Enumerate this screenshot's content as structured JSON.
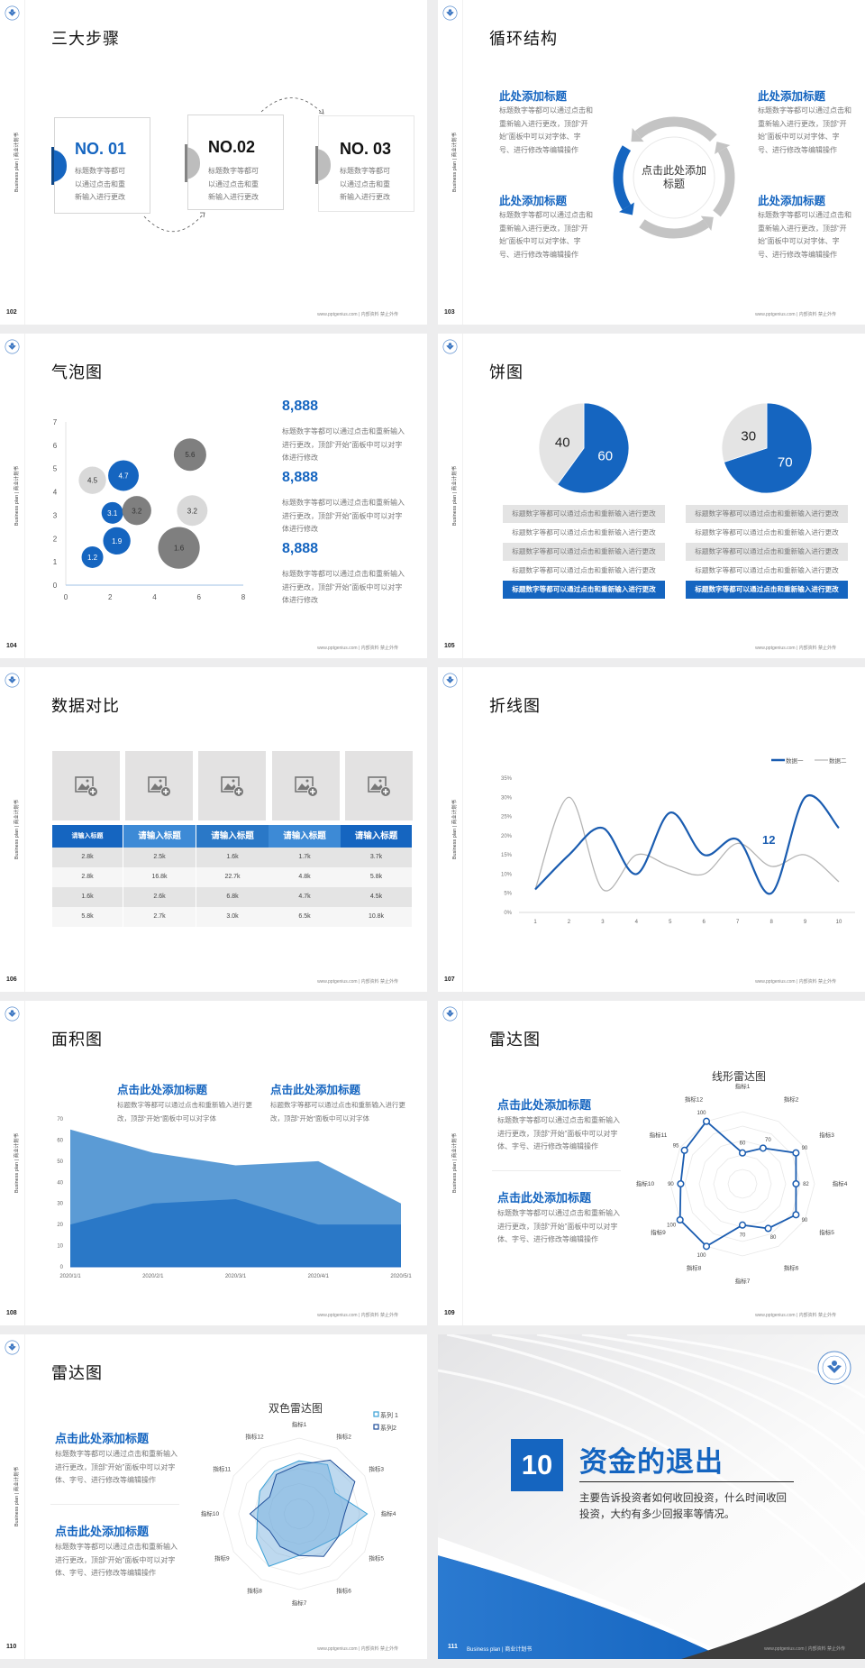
{
  "chrome": {
    "side_text": "Business plan | 商业计划书",
    "footer": "www.pptgenius.com | 内部资料 禁止外传",
    "logo": "university-seal-logo"
  },
  "colors": {
    "accent": "#1565c0",
    "light_gray": "#d9d9d9",
    "dark_gray": "#7f7f7f",
    "background": "#ededee"
  },
  "slide102": {
    "page": "102",
    "title": "三大步骤",
    "steps": [
      {
        "label": "NO. 01",
        "text": "标题数字等都可以通过点击和重新输入进行更改"
      },
      {
        "label": "NO.02",
        "text": "标题数字等都可以通过点击和重新输入进行更改"
      },
      {
        "label": "NO. 03",
        "text": "标题数字等都可以通过点击和重新输入进行更改"
      }
    ]
  },
  "slide103": {
    "page": "103",
    "title": "循环结构",
    "center": "点击此处添加标题",
    "blocks": [
      {
        "heading": "此处添加标题",
        "text": "标题数字等都可以通过点击和重新输入进行更改，顶部“开始”面板中可以对字体、字号、进行修改等编辑操作"
      },
      {
        "heading": "此处添加标题",
        "text": "标题数字等都可以通过点击和重新输入进行更改，顶部“开始”面板中可以对字体、字号、进行修改等编辑操作"
      },
      {
        "heading": "此处添加标题",
        "text": "标题数字等都可以通过点击和重新输入进行更改，顶部“开始”面板中可以对字体、字号、进行修改等编辑操作"
      },
      {
        "heading": "此处添加标题",
        "text": "标题数字等都可以通过点击和重新输入进行更改，顶部“开始”面板中可以对字体、字号、进行修改等编辑操作"
      }
    ]
  },
  "slide104": {
    "page": "104",
    "title": "气泡图",
    "stats": [
      {
        "value": "8,888",
        "text": "标题数字等都可以通过点击和重新输入进行更改，顶部“开始”面板中可以对字体进行修改"
      },
      {
        "value": "8,888",
        "text": "标题数字等都可以通过点击和重新输入进行更改，顶部“开始”面板中可以对字体进行修改"
      },
      {
        "value": "8,888",
        "text": "标题数字等都可以通过点击和重新输入进行更改，顶部“开始”面板中可以对字体进行修改"
      }
    ]
  },
  "slide105": {
    "page": "105",
    "title": "饼图",
    "rows_left": [
      "标题数字等都可以通过点击和重新输入进行更改",
      "标题数字等都可以通过点击和重新输入进行更改",
      "标题数字等都可以通过点击和重新输入进行更改",
      "标题数字等都可以通过点击和重新输入进行更改",
      "标题数字等都可以通过点击和重新输入进行更改"
    ],
    "rows_right": [
      "标题数字等都可以通过点击和重新输入进行更改",
      "标题数字等都可以通过点击和重新输入进行更改",
      "标题数字等都可以通过点击和重新输入进行更改",
      "标题数字等都可以通过点击和重新输入进行更改",
      "标题数字等都可以通过点击和重新输入进行更改"
    ]
  },
  "slide106": {
    "page": "106",
    "title": "数据对比",
    "image_icon": "add-image-icon",
    "headers": [
      "请输入标题",
      "请输入标题",
      "请输入标题",
      "请输入标题",
      "请输入标题"
    ],
    "rows": [
      [
        "2.8k",
        "2.5k",
        "1.6k",
        "1.7k",
        "3.7k"
      ],
      [
        "2.8k",
        "16.8k",
        "22.7k",
        "4.8k",
        "5.8k"
      ],
      [
        "1.6k",
        "2.6k",
        "6.8k",
        "4.7k",
        "4.5k"
      ],
      [
        "5.8k",
        "2.7k",
        "3.0k",
        "6.5k",
        "10.8k"
      ]
    ]
  },
  "slide107": {
    "page": "107",
    "title": "折线图",
    "annotation": "12"
  },
  "slide108": {
    "page": "108",
    "title": "面积图",
    "blocks": [
      {
        "heading": "点击此处添加标题",
        "text": "标题数字等都可以通过点击和重新输入进行更改，顶部“开始”面板中可以对字体"
      },
      {
        "heading": "点击此处添加标题",
        "text": "标题数字等都可以通过点击和重新输入进行更改，顶部“开始”面板中可以对字体"
      }
    ]
  },
  "slide109": {
    "page": "109",
    "title": "雷达图",
    "blocks": [
      {
        "heading": "点击此处添加标题",
        "text": "标题数字等都可以通过点击和重新输入进行更改，顶部“开始”面板中可以对字体、字号、进行修改等编辑操作"
      },
      {
        "heading": "点击此处添加标题",
        "text": "标题数字等都可以通过点击和重新输入进行更改，顶部“开始”面板中可以对字体、字号、进行修改等编辑操作"
      }
    ]
  },
  "slide110": {
    "page": "110",
    "title": "雷达图",
    "blocks": [
      {
        "heading": "点击此处添加标题",
        "text": "标题数字等都可以通过点击和重新输入进行更改，顶部“开始”面板中可以对字体、字号、进行修改等编辑操作"
      },
      {
        "heading": "点击此处添加标题",
        "text": "标题数字等都可以通过点击和重新输入进行更改，顶部“开始”面板中可以对字体、字号、进行修改等编辑操作"
      }
    ]
  },
  "slide111": {
    "page": "111",
    "number": "10",
    "title": "资金的退出",
    "text": "主要告诉投资者如何收回投资，什么时间收回投资，大约有多少回报率等情况。",
    "footer_left": "Business plan | 商业计划书"
  },
  "chart_data": [
    {
      "type": "scatter",
      "variant": "bubble",
      "xlim": [
        0,
        8
      ],
      "ylim": [
        0,
        7
      ],
      "xticks": [
        "0",
        "2",
        "4",
        "6",
        "8"
      ],
      "yticks": [
        "0",
        "1",
        "2",
        "3",
        "4",
        "5",
        "6",
        "7"
      ],
      "series": [
        {
          "color": "#1565c0",
          "points": [
            {
              "x": 1.2,
              "y": 1.2,
              "size": 1.0,
              "label": "1.2"
            },
            {
              "x": 2.3,
              "y": 1.9,
              "size": 1.6,
              "label": "1.9"
            },
            {
              "x": 2.1,
              "y": 3.1,
              "size": 1.0,
              "label": "3.1"
            },
            {
              "x": 2.6,
              "y": 4.7,
              "size": 2.0,
              "label": "4.7"
            }
          ]
        },
        {
          "color": "#d9d9d9",
          "points": [
            {
              "x": 1.2,
              "y": 4.5,
              "size": 1.6,
              "label": "4.5"
            },
            {
              "x": 5.7,
              "y": 3.2,
              "size": 2.0,
              "label": "3.2"
            }
          ]
        },
        {
          "color": "#7f7f7f",
          "points": [
            {
              "x": 3.2,
              "y": 3.2,
              "size": 1.8,
              "label": "3.2"
            },
            {
              "x": 5.6,
              "y": 5.6,
              "size": 2.25,
              "label": "5.6"
            },
            {
              "x": 5.1,
              "y": 1.6,
              "size": 3.7,
              "label": "1.6"
            }
          ]
        }
      ]
    },
    {
      "type": "pie",
      "slices": [
        {
          "value": 60,
          "label": "60",
          "color": "#1565c0"
        },
        {
          "value": 40,
          "label": "40",
          "color": "#e4e4e4"
        }
      ]
    },
    {
      "type": "pie",
      "slices": [
        {
          "value": 70,
          "label": "70",
          "color": "#1565c0"
        },
        {
          "value": 30,
          "label": "30",
          "color": "#e4e4e4"
        }
      ]
    },
    {
      "type": "line",
      "smooth": true,
      "categories": [
        "1",
        "2",
        "3",
        "4",
        "5",
        "6",
        "7",
        "8",
        "9",
        "10"
      ],
      "yticks": [
        "0%",
        "5%",
        "10%",
        "15%",
        "20%",
        "25%",
        "30%",
        "35%"
      ],
      "ylim": [
        0,
        35
      ],
      "legend": "top-right",
      "series": [
        {
          "name": "数据一",
          "color": "#1a5cb0",
          "values": [
            6,
            15,
            22,
            10,
            26,
            15,
            19,
            5,
            30,
            22
          ]
        },
        {
          "name": "数据二",
          "color": "#b4b4b4",
          "values": [
            6,
            30,
            6,
            15,
            12,
            10,
            18,
            12,
            15,
            8
          ]
        }
      ]
    },
    {
      "type": "area",
      "categories": [
        "2020/1/1",
        "2020/2/1",
        "2020/3/1",
        "2020/4/1",
        "2020/5/1"
      ],
      "yticks": [
        "0",
        "10",
        "20",
        "30",
        "40",
        "50",
        "60",
        "70"
      ],
      "ylim": [
        0,
        70
      ],
      "series": [
        {
          "color": "#5b9bd5",
          "values": [
            65,
            54,
            48,
            50,
            30
          ]
        },
        {
          "color": "#2a78c7",
          "values": [
            20,
            30,
            32,
            20,
            20
          ]
        }
      ]
    },
    {
      "type": "radar",
      "title": "线形雷达图",
      "range": [
        30,
        100
      ],
      "categories": [
        "指标1",
        "指标2",
        "指标3",
        "指标4",
        "指标5",
        "指标6",
        "指标7",
        "指标8",
        "指标9",
        "指标10",
        "指标11",
        "指标12"
      ],
      "series": [
        {
          "color": "#1a5cb0",
          "values": [
            60,
            70,
            90,
            82,
            90,
            80,
            70,
            100,
            100,
            90,
            95,
            100
          ]
        }
      ]
    },
    {
      "type": "radar",
      "title": "双色雷达图",
      "range": [
        0,
        100
      ],
      "legend": "top-right",
      "categories": [
        "指标1",
        "指标2",
        "指标3",
        "指标4",
        "指标5",
        "指标6",
        "指标7",
        "指标8",
        "指标9",
        "指标10",
        "指标11",
        "指标12"
      ],
      "series": [
        {
          "name": "系列 1",
          "color": "#3aa0d6",
          "values": [
            70,
            75,
            55,
            90,
            60,
            50,
            55,
            80,
            65,
            55,
            60,
            65
          ]
        },
        {
          "name": "系列2",
          "color": "#1f4e99",
          "values": [
            65,
            82,
            85,
            60,
            60,
            65,
            55,
            50,
            45,
            65,
            45,
            60
          ]
        }
      ]
    }
  ]
}
